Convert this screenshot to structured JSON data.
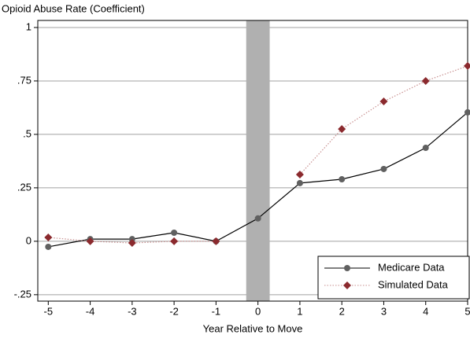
{
  "chart_data": {
    "type": "line",
    "title": "Opioid Abuse Rate (Coefficient)",
    "x_label": "Year Relative to Move",
    "x": [
      -5,
      -4,
      -3,
      -2,
      -1,
      0,
      1,
      2,
      3,
      4,
      5
    ],
    "series": [
      {
        "name": "Medicare Data",
        "color": "#606060",
        "line_style": "solid",
        "marker": "circle",
        "values": [
          -0.026,
          0.01,
          0.01,
          0.04,
          0,
          0.107,
          0.272,
          0.29,
          0.338,
          0.437,
          0.603
        ]
      },
      {
        "name": "Simulated Data",
        "color": "#8b2a2e",
        "line_style": "dotted",
        "marker": "diamond",
        "values": [
          0.018,
          0,
          -0.008,
          0,
          0,
          null,
          0.312,
          0.525,
          0.654,
          0.75,
          0.82
        ]
      }
    ],
    "shaded_region_x": [
      -0.28,
      0.28
    ],
    "shade_color": "#b0b0b0",
    "xlim": [
      -5.25,
      5
    ],
    "xticks": [
      -5,
      -4,
      -3,
      -2,
      -1,
      0,
      1,
      2,
      3,
      4,
      5
    ],
    "ylim": [
      -0.28,
      1.033
    ],
    "yticks": [
      {
        "value": -0.25,
        "label": "-.25"
      },
      0,
      {
        "value": 0.25,
        "label": ".25"
      },
      {
        "value": 0.5,
        "label": ".5"
      },
      {
        "value": 0.75,
        "label": ".75"
      },
      1
    ],
    "grid": true,
    "legend_position": "lower right"
  }
}
